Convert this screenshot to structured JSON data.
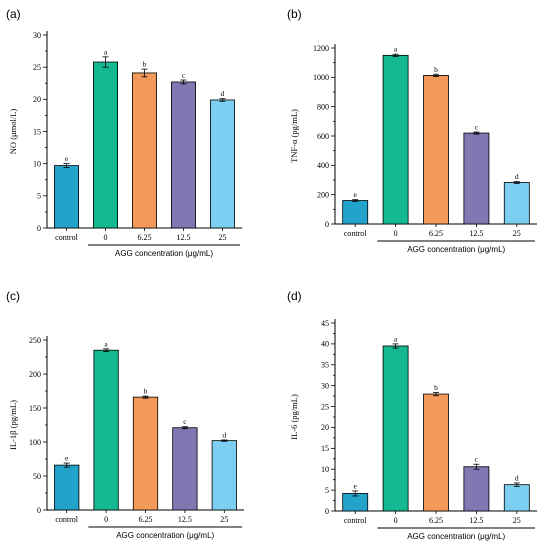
{
  "chart_data": [
    {
      "type": "bar",
      "panel_label": "(a)",
      "ylabel": "NO (μmol/L)",
      "xlabel": "AGG concentration (μg/mL)",
      "categories": [
        "control",
        "0",
        "6.25",
        "12.5",
        "25"
      ],
      "values": [
        9.7,
        25.8,
        24.1,
        22.7,
        19.9
      ],
      "errors": [
        0.3,
        0.8,
        0.6,
        0.3,
        0.2
      ],
      "letters": [
        "e",
        "a",
        "b",
        "c",
        "d"
      ],
      "ylim": [
        0,
        30
      ],
      "yticks": [
        0,
        5,
        10,
        15,
        20,
        25,
        30
      ]
    },
    {
      "type": "bar",
      "panel_label": "(b)",
      "ylabel": "TNF-α (pg/mL)",
      "xlabel": "AGG concentration (μg/mL)",
      "categories": [
        "control",
        "0",
        "6.25",
        "12.5",
        "25"
      ],
      "values": [
        160,
        1150,
        1013,
        620,
        283
      ],
      "errors": [
        6,
        8,
        8,
        7,
        6
      ],
      "letters": [
        "e",
        "a",
        "b",
        "c",
        "d"
      ],
      "ylim": [
        0,
        1200
      ],
      "yticks": [
        0,
        200,
        400,
        600,
        800,
        1000,
        1200
      ]
    },
    {
      "type": "bar",
      "panel_label": "(c)",
      "ylabel": "IL-1β (pg/mL)",
      "xlabel": "AGG concentration (μg/mL)",
      "categories": [
        "control",
        "0",
        "6.25",
        "12.5",
        "25"
      ],
      "values": [
        66,
        235,
        166,
        121,
        102
      ],
      "errors": [
        3,
        2,
        1.5,
        1.5,
        1
      ],
      "letters": [
        "e",
        "a",
        "b",
        "c",
        "d"
      ],
      "ylim": [
        0,
        250
      ],
      "yticks": [
        0,
        50,
        100,
        150,
        200,
        250
      ]
    },
    {
      "type": "bar",
      "panel_label": "(d)",
      "ylabel": "IL-6 (pg/mL)",
      "xlabel": "AGG concentration (μg/mL)",
      "categories": [
        "control",
        "0",
        "6.25",
        "12.5",
        "25"
      ],
      "values": [
        4.2,
        39.5,
        28.0,
        10.6,
        6.3
      ],
      "errors": [
        0.6,
        0.5,
        0.4,
        0.6,
        0.4
      ],
      "letters": [
        "e",
        "a",
        "b",
        "c",
        "d"
      ],
      "ylim": [
        0,
        45
      ],
      "yticks": [
        0,
        5,
        10,
        15,
        20,
        25,
        30,
        35,
        40,
        45
      ]
    }
  ],
  "colors": [
    "#24a3ca",
    "#14b891",
    "#f39a5b",
    "#8277b3",
    "#7ccff0"
  ]
}
